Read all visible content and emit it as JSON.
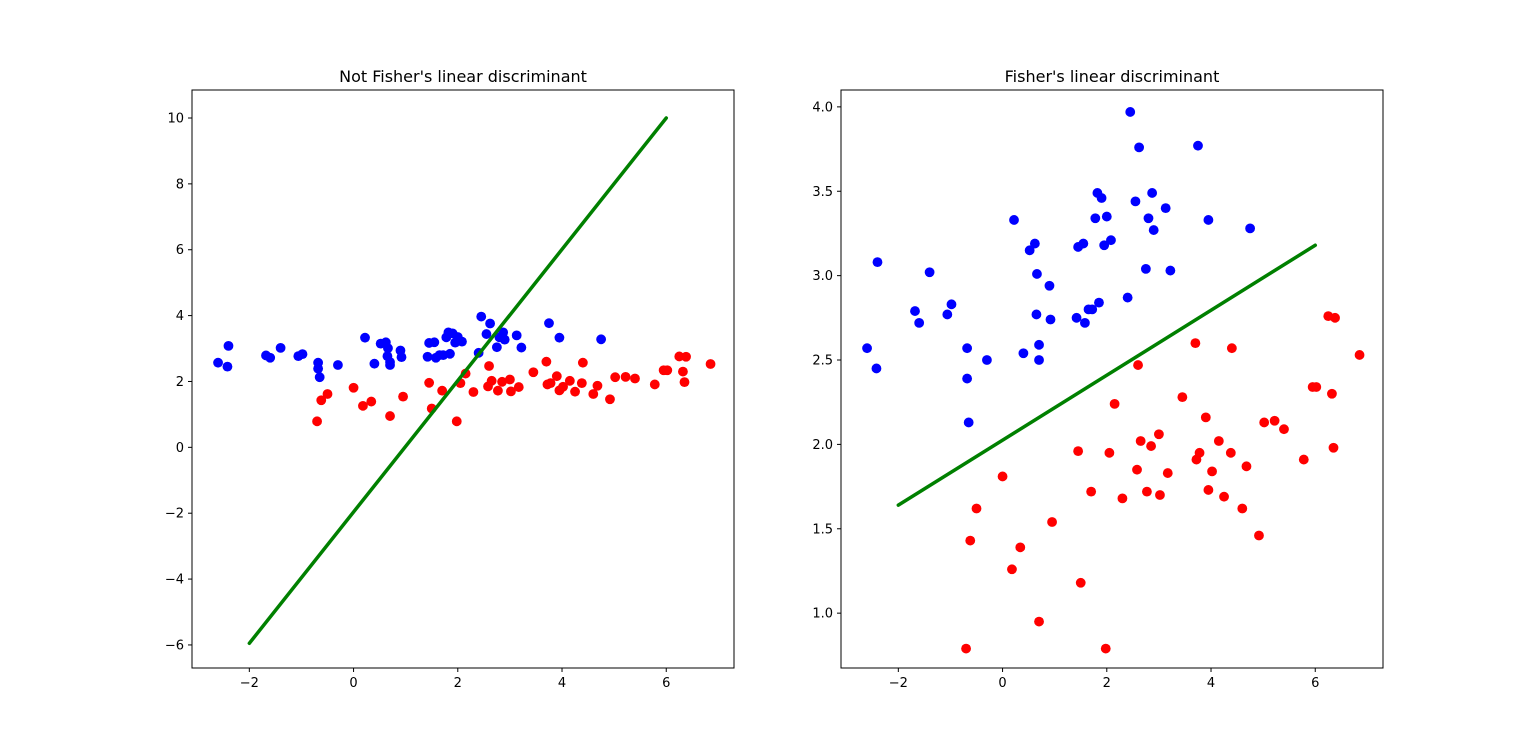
{
  "chart_data": [
    {
      "type": "scatter",
      "title": "Not Fisher's linear discriminant",
      "xlim": [
        -3.1,
        7.3
      ],
      "ylim": [
        -6.7,
        10.85
      ],
      "xticks": [
        -2,
        0,
        2,
        4,
        6
      ],
      "yticks": [
        -6,
        -4,
        -2,
        0,
        2,
        4,
        6,
        8,
        10
      ],
      "xtick_labels": [
        "−2",
        "0",
        "2",
        "4",
        "6"
      ],
      "ytick_labels": [
        "−6",
        "−4",
        "−2",
        "0",
        "2",
        "4",
        "6",
        "8",
        "10"
      ],
      "grid": false,
      "colors": {
        "blue": "#0000ff",
        "red": "#ff0000",
        "line": "#008000"
      },
      "series": [
        {
          "kind": "scatter",
          "color": "blue",
          "points": [
            [
              -2.6,
              2.57
            ],
            [
              -2.42,
              2.45
            ],
            [
              -2.4,
              3.08
            ],
            [
              -1.68,
              2.79
            ],
            [
              -1.6,
              2.72
            ],
            [
              -1.4,
              3.02
            ],
            [
              -1.06,
              2.77
            ],
            [
              -0.98,
              2.83
            ],
            [
              -0.68,
              2.57
            ],
            [
              -0.68,
              2.39
            ],
            [
              -0.65,
              2.13
            ],
            [
              -0.3,
              2.5
            ],
            [
              0.22,
              3.33
            ],
            [
              0.4,
              2.54
            ],
            [
              0.52,
              3.15
            ],
            [
              0.62,
              3.19
            ],
            [
              0.65,
              2.77
            ],
            [
              0.66,
              3.01
            ],
            [
              0.7,
              2.5
            ],
            [
              0.7,
              2.59
            ],
            [
              0.9,
              2.94
            ],
            [
              0.92,
              2.74
            ],
            [
              1.42,
              2.75
            ],
            [
              1.45,
              3.17
            ],
            [
              1.55,
              3.19
            ],
            [
              1.58,
              2.72
            ],
            [
              1.65,
              2.8
            ],
            [
              1.72,
              2.8
            ],
            [
              1.78,
              3.34
            ],
            [
              1.82,
              3.49
            ],
            [
              1.85,
              2.84
            ],
            [
              1.9,
              3.46
            ],
            [
              1.95,
              3.18
            ],
            [
              2.0,
              3.35
            ],
            [
              2.08,
              3.21
            ],
            [
              2.4,
              2.87
            ],
            [
              2.45,
              3.97
            ],
            [
              2.55,
              3.44
            ],
            [
              2.62,
              3.76
            ],
            [
              2.75,
              3.04
            ],
            [
              2.8,
              3.34
            ],
            [
              2.87,
              3.49
            ],
            [
              2.9,
              3.27
            ],
            [
              3.22,
              3.03
            ],
            [
              3.13,
              3.4
            ],
            [
              3.75,
              3.77
            ],
            [
              3.95,
              3.33
            ],
            [
              4.75,
              3.28
            ]
          ]
        },
        {
          "kind": "scatter",
          "color": "red",
          "points": [
            [
              -0.7,
              0.79
            ],
            [
              -0.62,
              1.43
            ],
            [
              -0.5,
              1.62
            ],
            [
              0.0,
              1.81
            ],
            [
              0.18,
              1.26
            ],
            [
              0.34,
              1.39
            ],
            [
              0.7,
              0.95
            ],
            [
              0.95,
              1.54
            ],
            [
              1.45,
              1.96
            ],
            [
              1.5,
              1.18
            ],
            [
              1.7,
              1.72
            ],
            [
              1.98,
              0.79
            ],
            [
              2.05,
              1.95
            ],
            [
              2.15,
              2.24
            ],
            [
              2.3,
              1.68
            ],
            [
              2.58,
              1.85
            ],
            [
              2.6,
              2.47
            ],
            [
              2.65,
              2.02
            ],
            [
              2.77,
              1.72
            ],
            [
              2.85,
              1.99
            ],
            [
              3.0,
              2.06
            ],
            [
              3.02,
              1.7
            ],
            [
              3.17,
              1.83
            ],
            [
              3.45,
              2.28
            ],
            [
              3.7,
              2.6
            ],
            [
              3.72,
              1.91
            ],
            [
              3.78,
              1.95
            ],
            [
              3.9,
              2.16
            ],
            [
              3.95,
              1.73
            ],
            [
              4.02,
              1.84
            ],
            [
              4.15,
              2.02
            ],
            [
              4.25,
              1.69
            ],
            [
              4.38,
              1.95
            ],
            [
              4.4,
              2.57
            ],
            [
              4.6,
              1.62
            ],
            [
              4.68,
              1.87
            ],
            [
              4.92,
              1.46
            ],
            [
              5.02,
              2.13
            ],
            [
              5.22,
              2.14
            ],
            [
              5.4,
              2.09
            ],
            [
              5.78,
              1.91
            ],
            [
              5.95,
              2.34
            ],
            [
              6.02,
              2.34
            ],
            [
              6.25,
              2.76
            ],
            [
              6.32,
              2.3
            ],
            [
              6.38,
              2.75
            ],
            [
              6.35,
              1.98
            ],
            [
              6.85,
              2.53
            ]
          ]
        },
        {
          "kind": "line",
          "color": "line",
          "points": [
            [
              -2,
              -5.95
            ],
            [
              6,
              10.0
            ]
          ]
        }
      ]
    },
    {
      "type": "scatter",
      "title": "Fisher's linear discriminant",
      "xlim": [
        -3.1,
        7.3
      ],
      "ylim": [
        0.675,
        4.1
      ],
      "xticks": [
        -2,
        0,
        2,
        4,
        6
      ],
      "yticks": [
        1.0,
        1.5,
        2.0,
        2.5,
        3.0,
        3.5,
        4.0
      ],
      "xtick_labels": [
        "−2",
        "0",
        "2",
        "4",
        "6"
      ],
      "ytick_labels": [
        "1.0",
        "1.5",
        "2.0",
        "2.5",
        "3.0",
        "3.5",
        "4.0"
      ],
      "grid": false,
      "colors": {
        "blue": "#0000ff",
        "red": "#ff0000",
        "line": "#008000"
      },
      "series": [
        {
          "kind": "scatter",
          "color": "blue",
          "points": [
            [
              -2.6,
              2.57
            ],
            [
              -2.42,
              2.45
            ],
            [
              -2.4,
              3.08
            ],
            [
              -1.68,
              2.79
            ],
            [
              -1.6,
              2.72
            ],
            [
              -1.4,
              3.02
            ],
            [
              -1.06,
              2.77
            ],
            [
              -0.98,
              2.83
            ],
            [
              -0.68,
              2.57
            ],
            [
              -0.68,
              2.39
            ],
            [
              -0.65,
              2.13
            ],
            [
              -0.3,
              2.5
            ],
            [
              0.22,
              3.33
            ],
            [
              0.4,
              2.54
            ],
            [
              0.52,
              3.15
            ],
            [
              0.62,
              3.19
            ],
            [
              0.65,
              2.77
            ],
            [
              0.66,
              3.01
            ],
            [
              0.7,
              2.5
            ],
            [
              0.7,
              2.59
            ],
            [
              0.9,
              2.94
            ],
            [
              0.92,
              2.74
            ],
            [
              1.42,
              2.75
            ],
            [
              1.45,
              3.17
            ],
            [
              1.55,
              3.19
            ],
            [
              1.58,
              2.72
            ],
            [
              1.65,
              2.8
            ],
            [
              1.72,
              2.8
            ],
            [
              1.78,
              3.34
            ],
            [
              1.82,
              3.49
            ],
            [
              1.85,
              2.84
            ],
            [
              1.9,
              3.46
            ],
            [
              1.95,
              3.18
            ],
            [
              2.0,
              3.35
            ],
            [
              2.08,
              3.21
            ],
            [
              2.4,
              2.87
            ],
            [
              2.45,
              3.97
            ],
            [
              2.55,
              3.44
            ],
            [
              2.62,
              3.76
            ],
            [
              2.75,
              3.04
            ],
            [
              2.8,
              3.34
            ],
            [
              2.87,
              3.49
            ],
            [
              2.9,
              3.27
            ],
            [
              3.22,
              3.03
            ],
            [
              3.13,
              3.4
            ],
            [
              3.75,
              3.77
            ],
            [
              3.95,
              3.33
            ],
            [
              4.75,
              3.28
            ]
          ]
        },
        {
          "kind": "scatter",
          "color": "red",
          "points": [
            [
              -0.7,
              0.79
            ],
            [
              -0.62,
              1.43
            ],
            [
              -0.5,
              1.62
            ],
            [
              0.0,
              1.81
            ],
            [
              0.18,
              1.26
            ],
            [
              0.34,
              1.39
            ],
            [
              0.7,
              0.95
            ],
            [
              0.95,
              1.54
            ],
            [
              1.45,
              1.96
            ],
            [
              1.5,
              1.18
            ],
            [
              1.7,
              1.72
            ],
            [
              1.98,
              0.79
            ],
            [
              2.05,
              1.95
            ],
            [
              2.15,
              2.24
            ],
            [
              2.3,
              1.68
            ],
            [
              2.58,
              1.85
            ],
            [
              2.6,
              2.47
            ],
            [
              2.65,
              2.02
            ],
            [
              2.77,
              1.72
            ],
            [
              2.85,
              1.99
            ],
            [
              3.0,
              2.06
            ],
            [
              3.02,
              1.7
            ],
            [
              3.17,
              1.83
            ],
            [
              3.45,
              2.28
            ],
            [
              3.7,
              2.6
            ],
            [
              3.72,
              1.91
            ],
            [
              3.78,
              1.95
            ],
            [
              3.9,
              2.16
            ],
            [
              3.95,
              1.73
            ],
            [
              4.02,
              1.84
            ],
            [
              4.15,
              2.02
            ],
            [
              4.25,
              1.69
            ],
            [
              4.38,
              1.95
            ],
            [
              4.4,
              2.57
            ],
            [
              4.6,
              1.62
            ],
            [
              4.68,
              1.87
            ],
            [
              4.92,
              1.46
            ],
            [
              5.02,
              2.13
            ],
            [
              5.22,
              2.14
            ],
            [
              5.4,
              2.09
            ],
            [
              5.78,
              1.91
            ],
            [
              5.95,
              2.34
            ],
            [
              6.02,
              2.34
            ],
            [
              6.25,
              2.76
            ],
            [
              6.32,
              2.3
            ],
            [
              6.38,
              2.75
            ],
            [
              6.35,
              1.98
            ],
            [
              6.85,
              2.53
            ]
          ]
        },
        {
          "kind": "line",
          "color": "line",
          "points": [
            [
              -2,
              1.64
            ],
            [
              6,
              3.18
            ]
          ]
        }
      ]
    }
  ]
}
